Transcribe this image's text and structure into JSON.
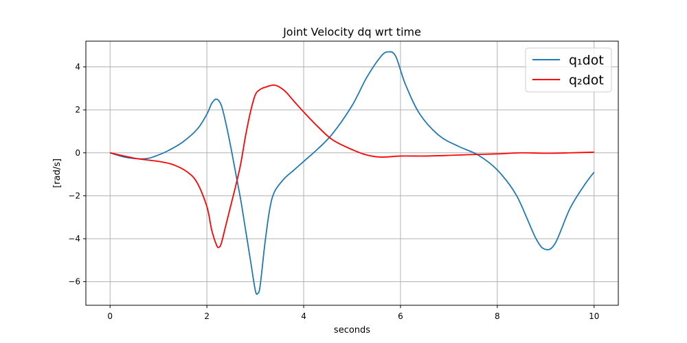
{
  "chart_data": {
    "type": "line",
    "title": "Joint Velocity dq wrt time",
    "xlabel": "seconds",
    "ylabel": "[rad/s]",
    "xlim": [
      -0.5,
      10.5
    ],
    "ylim": [
      -7.1,
      5.2
    ],
    "xticks": [
      0,
      2,
      4,
      6,
      8,
      10
    ],
    "yticks": [
      -6,
      -4,
      -2,
      0,
      2,
      4
    ],
    "xtick_labels": [
      "0",
      "2",
      "4",
      "6",
      "8",
      "10"
    ],
    "ytick_labels": [
      "−6",
      "−4",
      "−2",
      "0",
      "2",
      "4"
    ],
    "grid": true,
    "legend_position": "top-right",
    "series": [
      {
        "name": "q₁dot",
        "color": "#1f77b4",
        "x": [
          0,
          0.3,
          0.6,
          0.8,
          1.0,
          1.2,
          1.5,
          1.8,
          2.0,
          2.1,
          2.2,
          2.3,
          2.4,
          2.5,
          2.6,
          2.7,
          2.8,
          2.9,
          3.0,
          3.05,
          3.1,
          3.2,
          3.3,
          3.4,
          3.6,
          3.8,
          4.0,
          4.3,
          4.6,
          5.0,
          5.3,
          5.6,
          5.75,
          5.9,
          6.1,
          6.4,
          6.8,
          7.2,
          7.6,
          8.0,
          8.4,
          8.8,
          9.0,
          9.2,
          9.5,
          9.8,
          10.0
        ],
        "y": [
          0,
          -0.2,
          -0.28,
          -0.25,
          -0.1,
          0.1,
          0.5,
          1.1,
          1.8,
          2.3,
          2.5,
          2.2,
          1.3,
          0.2,
          -1.0,
          -2.2,
          -3.6,
          -5.0,
          -6.4,
          -6.55,
          -6.2,
          -4.2,
          -2.6,
          -1.8,
          -1.2,
          -0.8,
          -0.4,
          0.2,
          0.9,
          2.2,
          3.5,
          4.5,
          4.7,
          4.5,
          3.2,
          1.8,
          0.8,
          0.3,
          -0.1,
          -0.8,
          -2.0,
          -4.0,
          -4.5,
          -4.2,
          -2.6,
          -1.5,
          -0.9
        ]
      },
      {
        "name": "q₂dot",
        "color": "#ff0000",
        "x": [
          0,
          0.5,
          1.0,
          1.3,
          1.6,
          1.8,
          2.0,
          2.1,
          2.2,
          2.25,
          2.3,
          2.4,
          2.5,
          2.6,
          2.7,
          2.8,
          2.9,
          3.0,
          3.1,
          3.2,
          3.4,
          3.6,
          3.8,
          4.0,
          4.3,
          4.6,
          5.0,
          5.3,
          5.6,
          6.0,
          6.5,
          7.0,
          7.5,
          8.0,
          8.5,
          9.0,
          9.5,
          10.0
        ],
        "y": [
          0,
          -0.25,
          -0.4,
          -0.55,
          -0.9,
          -1.4,
          -2.5,
          -3.6,
          -4.3,
          -4.4,
          -4.2,
          -3.3,
          -2.4,
          -1.5,
          -0.5,
          0.8,
          1.9,
          2.7,
          2.95,
          3.05,
          3.15,
          2.9,
          2.4,
          1.9,
          1.2,
          0.6,
          0.15,
          -0.1,
          -0.2,
          -0.15,
          -0.15,
          -0.12,
          -0.08,
          -0.05,
          0,
          -0.02,
          0,
          0.03
        ]
      }
    ]
  }
}
